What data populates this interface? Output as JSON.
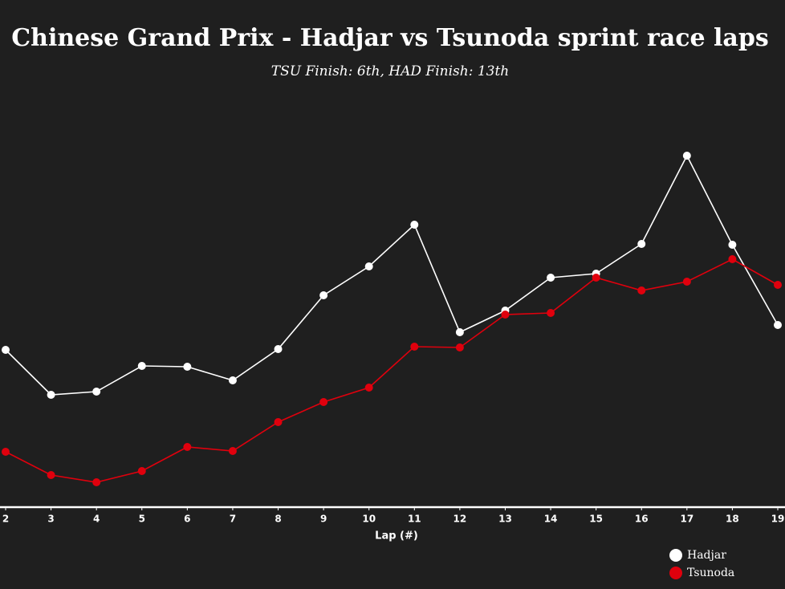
{
  "chart_data": {
    "type": "line",
    "title": "Chinese Grand Prix - Hadjar vs Tsunoda sprint race laps",
    "subtitle": "TSU Finish: 6th, HAD Finish: 13th",
    "xlabel": "Lap (#)",
    "x": [
      2,
      3,
      4,
      5,
      6,
      7,
      8,
      9,
      10,
      11,
      12,
      13,
      14,
      15,
      16,
      17,
      18,
      19
    ],
    "xlim": [
      2,
      19
    ],
    "xticks": [
      2,
      3,
      4,
      5,
      6,
      7,
      8,
      9,
      10,
      11,
      12,
      13,
      14,
      15,
      16,
      17,
      18,
      19
    ],
    "ylim": [
      0,
      100
    ],
    "grid": false,
    "legend": "lower right",
    "series": [
      {
        "name": "Hadjar",
        "color": "#ffffff",
        "values": [
          39.2,
          28,
          28.8,
          35.2,
          35,
          31.6,
          39.4,
          52.8,
          60,
          70.4,
          43.6,
          49,
          57.2,
          58.2,
          65.6,
          87.6,
          65.4,
          45.4
        ]
      },
      {
        "name": "Tsunoda",
        "color": "#e0000d",
        "values": [
          13.8,
          8,
          6.2,
          9,
          15,
          14,
          21.2,
          26.2,
          29.8,
          40,
          39.8,
          48,
          48.4,
          57.2,
          54,
          56.2,
          61.8,
          55.4
        ]
      }
    ]
  }
}
